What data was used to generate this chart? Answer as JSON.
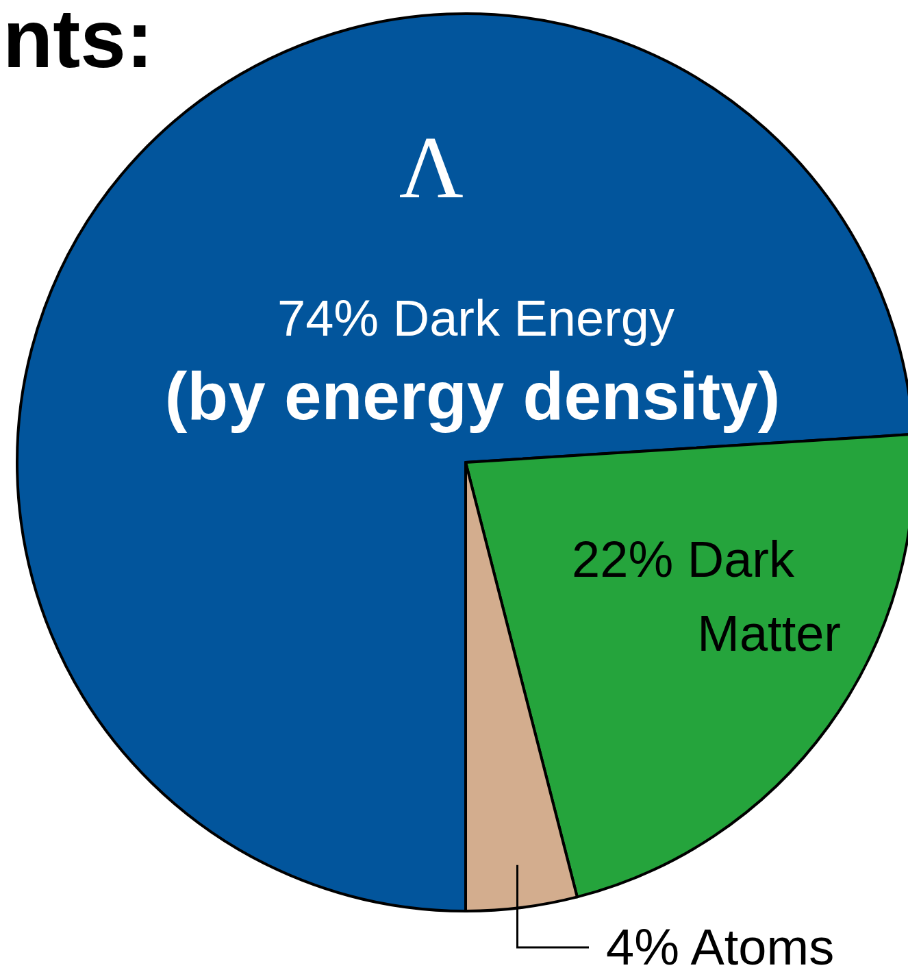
{
  "chart_data": {
    "type": "pie",
    "title": "nts:",
    "subtitle": "(by energy density)",
    "categories": [
      "Dark Energy",
      "Dark Matter",
      "Atoms"
    ],
    "values": [
      74,
      22,
      4
    ],
    "value_labels": [
      "74%",
      "22%",
      "4%"
    ],
    "colors": [
      "#02559c",
      "#25a43c",
      "#d3ad8e"
    ],
    "annotations": [
      "Λ"
    ]
  }
}
